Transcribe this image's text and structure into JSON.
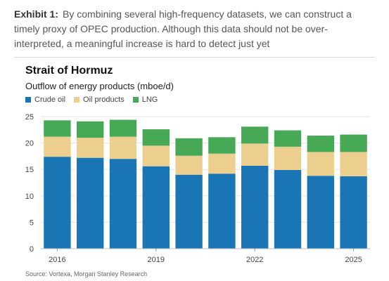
{
  "exhibit": {
    "label": "Exhibit 1:",
    "text": "By combining several high-frequency datasets, we can construct a timely proxy of OPEC production. Although this data should not be over-interpreted, a meaningful increase is hard to detect just yet"
  },
  "source": "Source: Vortexa, Morgan Stanley Research",
  "chart_data": {
    "type": "bar",
    "stacked": true,
    "title": "Strait of Hormuz",
    "subtitle": "Outflow of energy products (mboe/d)",
    "x_tick_labels": [
      "2016",
      "2019",
      "2022",
      "2025"
    ],
    "n_bars": 10,
    "x_tick_positions": [
      0,
      3,
      6,
      9
    ],
    "yticks": [
      0,
      5,
      10,
      15,
      20,
      25
    ],
    "ylim": [
      0,
      25
    ],
    "grid": true,
    "legend_position": "top-left",
    "series": [
      {
        "name": "Crude oil",
        "color": "#1a75b4",
        "values": [
          17.4,
          17.2,
          17.0,
          15.6,
          14.0,
          14.2,
          15.7,
          14.9,
          13.8,
          13.7
        ]
      },
      {
        "name": "Oil products",
        "color": "#eccf8e",
        "values": [
          3.8,
          3.8,
          4.2,
          3.9,
          3.6,
          3.8,
          4.2,
          4.4,
          4.5,
          4.6
        ]
      },
      {
        "name": "LNG",
        "color": "#47a856",
        "values": [
          3.1,
          3.1,
          3.2,
          3.1,
          3.3,
          3.1,
          3.2,
          3.1,
          3.1,
          3.3
        ]
      }
    ]
  }
}
